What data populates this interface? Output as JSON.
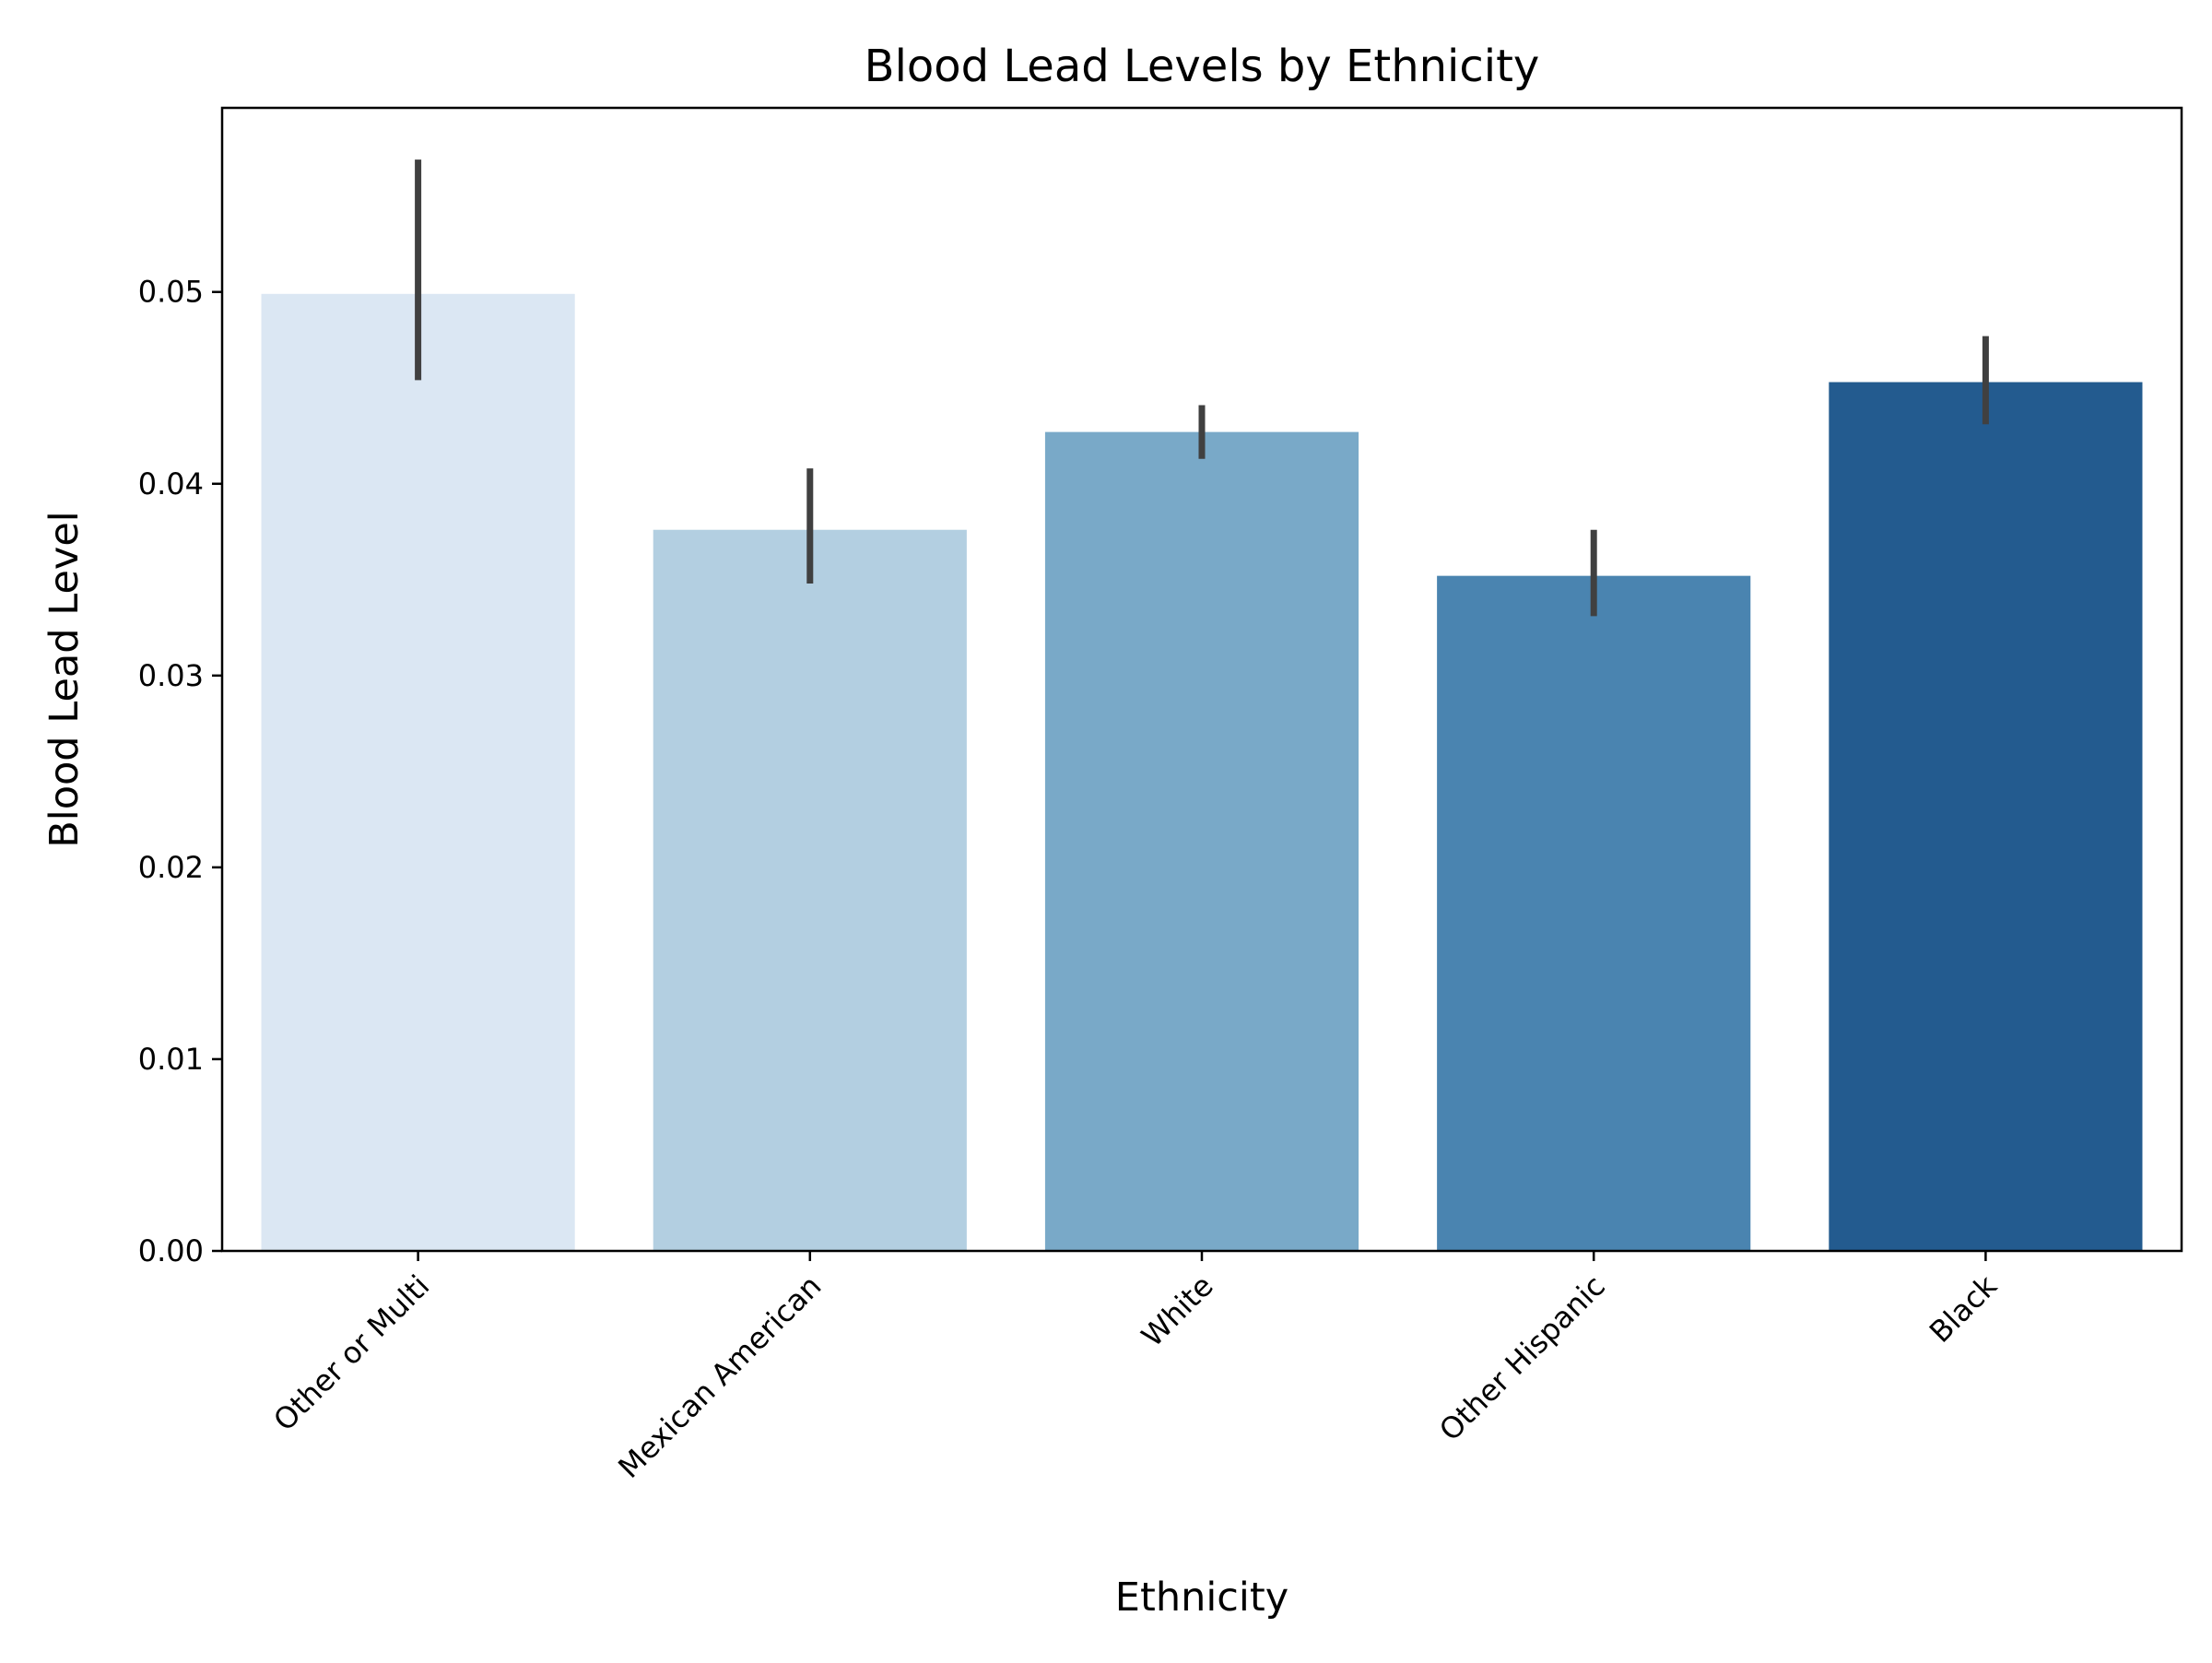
{
  "chart_data": {
    "type": "bar",
    "title": "Blood Lead Levels by Ethnicity",
    "xlabel": "Ethnicity",
    "ylabel": "Blood Lead Level",
    "categories": [
      "Other or Multi",
      "Mexican American",
      "White",
      "Other Hispanic",
      "Black"
    ],
    "values": [
      0.0499,
      0.0376,
      0.0427,
      0.0352,
      0.0453
    ],
    "error_bars": [
      [
        0.0454,
        0.0569
      ],
      [
        0.0348,
        0.0408
      ],
      [
        0.0413,
        0.0441
      ],
      [
        0.0331,
        0.0376
      ],
      [
        0.0431,
        0.0477
      ]
    ],
    "colors": [
      "#dbe7f3",
      "#b3cfe1",
      "#79a9c8",
      "#4a84b0",
      "#235b8f"
    ],
    "error_color": "#404040",
    "ylim": [
      0,
      0.0596
    ],
    "yticks": [
      0.0,
      0.01,
      0.02,
      0.03,
      0.04,
      0.05
    ],
    "ytick_labels": [
      "0.00",
      "0.01",
      "0.02",
      "0.03",
      "0.04",
      "0.05"
    ],
    "x_tick_rotation": 45,
    "grid": false,
    "legend": "none"
  }
}
